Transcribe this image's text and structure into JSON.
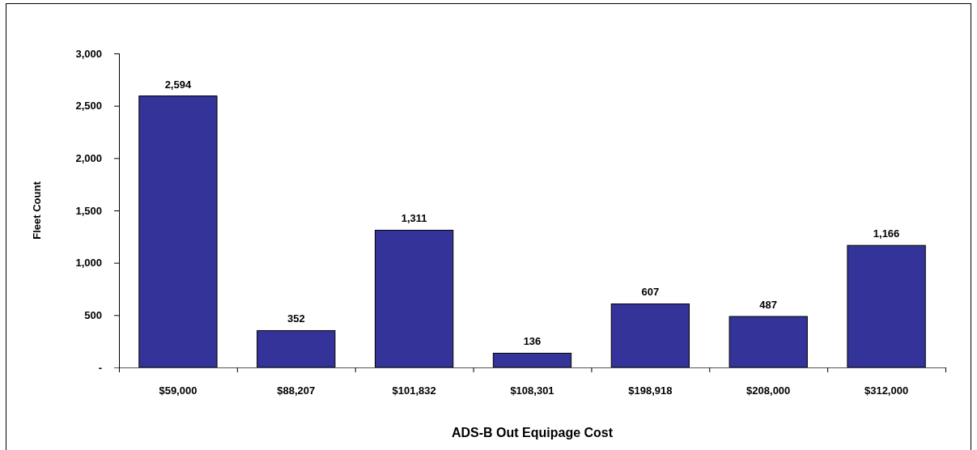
{
  "chart_data": {
    "type": "bar",
    "xlabel": "ADS-B Out Equipage Cost",
    "ylabel": "Fleet Count",
    "categories": [
      "$59,000",
      "$88,207",
      "$101,832",
      "$108,301",
      "$198,918",
      "$208,000",
      "$312,000"
    ],
    "values": [
      2594,
      352,
      1311,
      136,
      607,
      487,
      1166
    ],
    "value_labels": [
      "2,594",
      "352",
      "1,311",
      "136",
      "607",
      "487",
      "1,166"
    ],
    "color": "#333399",
    "ylim": [
      0,
      3000
    ],
    "yticks": [
      {
        "value": 0,
        "label": "-"
      },
      500,
      {
        "value": 1000,
        "label": "1,000"
      },
      {
        "value": 1500,
        "label": "1,500"
      },
      {
        "value": 2000,
        "label": "2,000"
      },
      {
        "value": 2500,
        "label": "2,500"
      },
      {
        "value": 3000,
        "label": "3,000"
      }
    ],
    "grid": false
  }
}
